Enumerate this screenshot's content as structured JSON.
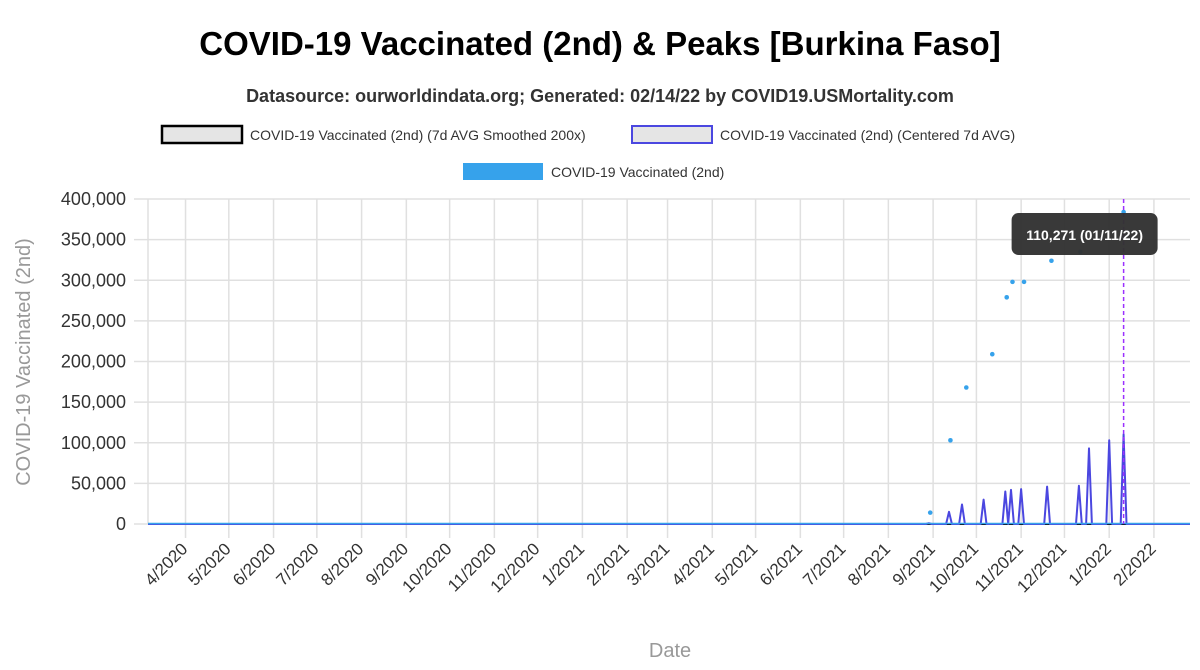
{
  "chart_data": {
    "type": "line",
    "title": "COVID-19 Vaccinated (2nd) & Peaks [Burkina Faso]",
    "subtitle": "Datasource: ourworldindata.org; Generated: 02/14/22 by COVID19.USMortality.com",
    "xlabel": "Date",
    "ylabel": "COVID-19 Vaccinated (2nd)",
    "ylim": [
      0,
      400000
    ],
    "xlim": [
      "2020-03-06",
      "2022-02-26"
    ],
    "yticks": [
      {
        "value": 0,
        "label": "0"
      },
      {
        "value": 50000,
        "label": "50,000"
      },
      {
        "value": 100000,
        "label": "100,000"
      },
      {
        "value": 150000,
        "label": "150,000"
      },
      {
        "value": 200000,
        "label": "200,000"
      },
      {
        "value": 250000,
        "label": "250,000"
      },
      {
        "value": 300000,
        "label": "300,000"
      },
      {
        "value": 350000,
        "label": "350,000"
      },
      {
        "value": 400000,
        "label": "400,000"
      }
    ],
    "xticks": [
      {
        "date": "2020-04-01",
        "label": "4/2020"
      },
      {
        "date": "2020-05-01",
        "label": "5/2020"
      },
      {
        "date": "2020-06-01",
        "label": "6/2020"
      },
      {
        "date": "2020-07-01",
        "label": "7/2020"
      },
      {
        "date": "2020-08-01",
        "label": "8/2020"
      },
      {
        "date": "2020-09-01",
        "label": "9/2020"
      },
      {
        "date": "2020-10-01",
        "label": "10/2020"
      },
      {
        "date": "2020-11-01",
        "label": "11/2020"
      },
      {
        "date": "2020-12-01",
        "label": "12/2020"
      },
      {
        "date": "2021-01-01",
        "label": "1/2021"
      },
      {
        "date": "2021-02-01",
        "label": "2/2021"
      },
      {
        "date": "2021-03-01",
        "label": "3/2021"
      },
      {
        "date": "2021-04-01",
        "label": "4/2021"
      },
      {
        "date": "2021-05-01",
        "label": "5/2021"
      },
      {
        "date": "2021-06-01",
        "label": "6/2021"
      },
      {
        "date": "2021-07-01",
        "label": "7/2021"
      },
      {
        "date": "2021-08-01",
        "label": "8/2021"
      },
      {
        "date": "2021-09-01",
        "label": "9/2021"
      },
      {
        "date": "2021-10-01",
        "label": "10/2021"
      },
      {
        "date": "2021-11-01",
        "label": "11/2021"
      },
      {
        "date": "2021-12-01",
        "label": "12/2021"
      },
      {
        "date": "2022-01-01",
        "label": "1/2022"
      },
      {
        "date": "2022-02-01",
        "label": "2/2022"
      }
    ],
    "grid": true,
    "legend_position": "top",
    "series": [
      {
        "name": "COVID-19 Vaccinated (2nd) (7d AVG Smoothed 200x)",
        "style": "line",
        "color": "#000000",
        "legend_fill": "#e5e5e5",
        "x": [
          "2020-03-06",
          "2022-02-26"
        ],
        "values": [
          0,
          0
        ]
      },
      {
        "name": "COVID-19 Vaccinated (2nd) (Centered 7d AVG)",
        "style": "line",
        "color": "#4b47e0",
        "legend_fill": "#e5e5e5",
        "peaks": [
          {
            "date": "2021-08-29",
            "value": 1000
          },
          {
            "date": "2021-09-12",
            "value": 15000
          },
          {
            "date": "2021-09-21",
            "value": 24000
          },
          {
            "date": "2021-10-06",
            "value": 30000
          },
          {
            "date": "2021-10-21",
            "value": 40000
          },
          {
            "date": "2021-10-25",
            "value": 42000
          },
          {
            "date": "2021-11-01",
            "value": 43000
          },
          {
            "date": "2021-11-19",
            "value": 46000
          },
          {
            "date": "2021-12-11",
            "value": 47000
          },
          {
            "date": "2021-12-18",
            "value": 93000
          },
          {
            "date": "2022-01-01",
            "value": 103000
          },
          {
            "date": "2022-01-11",
            "value": 110271
          }
        ]
      },
      {
        "name": "COVID-19 Vaccinated (2nd)",
        "style": "scatter",
        "color": "#36a2eb",
        "x": [
          "2021-08-30",
          "2021-09-13",
          "2021-09-24",
          "2021-10-12",
          "2021-10-22",
          "2021-10-26",
          "2021-11-03",
          "2021-11-22",
          "2021-12-12",
          "2022-01-11"
        ],
        "values": [
          14000,
          103000,
          168000,
          209000,
          279000,
          298000,
          298000,
          324000,
          335000,
          384000
        ]
      }
    ],
    "tooltip": {
      "text": "110,271 (01/11/22)",
      "date": "2022-01-11"
    },
    "marker_line": {
      "date": "2022-01-11",
      "color": "#9b30ff"
    }
  }
}
